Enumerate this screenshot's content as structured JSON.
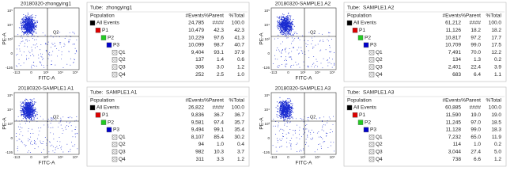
{
  "panels": [
    {
      "plot": {
        "title": "20180320-zhongying1",
        "x_label": "FITC-A",
        "y_label": "PE-A",
        "x_ticks": [
          "-113",
          "0",
          "10³",
          "10⁴",
          "10⁵"
        ],
        "y_ticks": [
          "10⁵",
          "10⁴",
          "10³",
          "0",
          "-126"
        ],
        "quadrant_label": "Q2"
      },
      "table": {
        "tube_label": "Tube:",
        "tube_name": "zhongying1",
        "header": [
          "Population",
          "#Events",
          "%Parent",
          "%Total"
        ],
        "rows": [
          [
            "All Events",
            "24,785",
            "####",
            "100.0"
          ],
          [
            "P1",
            "10,479",
            "42.3",
            "42.3"
          ],
          [
            "P2",
            "10,229",
            "97.6",
            "41.3"
          ],
          [
            "P3",
            "10,099",
            "98.7",
            "40.7"
          ],
          [
            "Q1",
            "9,404",
            "93.1",
            "37.9"
          ],
          [
            "Q2",
            "137",
            "1.4",
            "0.6"
          ],
          [
            "Q3",
            "306",
            "3.0",
            "1.2"
          ],
          [
            "Q4",
            "252",
            "2.5",
            "1.0"
          ]
        ]
      }
    },
    {
      "plot": {
        "title": "20180320-SAMPLE1 A2",
        "x_label": "FITC-A",
        "y_label": "PE-A",
        "x_ticks": [
          "-113",
          "0",
          "10³",
          "10⁴",
          "10⁵"
        ],
        "y_ticks": [
          "10⁵",
          "10⁴",
          "10³",
          "0",
          "-126"
        ],
        "quadrant_label": "Q2"
      },
      "table": {
        "tube_label": "Tube:",
        "tube_name": "SAMPLE1 A2",
        "header": [
          "Population",
          "#Events",
          "%Parent",
          "%Total"
        ],
        "rows": [
          [
            "All Events",
            "61,212",
            "####",
            "100.0"
          ],
          [
            "P1",
            "11,126",
            "18.2",
            "18.2"
          ],
          [
            "P2",
            "10,817",
            "97.2",
            "17.7"
          ],
          [
            "P3",
            "10,709",
            "99.0",
            "17.5"
          ],
          [
            "Q1",
            "7,491",
            "70.0",
            "12.2"
          ],
          [
            "Q2",
            "134",
            "1.3",
            "0.2"
          ],
          [
            "Q3",
            "2,401",
            "22.4",
            "3.9"
          ],
          [
            "Q4",
            "683",
            "6.4",
            "1.1"
          ]
        ]
      }
    },
    {
      "plot": {
        "title": "20180320-SAMPLE1 A1",
        "x_label": "FITC-A",
        "y_label": "PE-A",
        "x_ticks": [
          "-113",
          "0",
          "10³",
          "10⁴",
          "10⁵"
        ],
        "y_ticks": [
          "10⁵",
          "10⁴",
          "10³",
          "0",
          "-126"
        ],
        "quadrant_label": "Q2"
      },
      "table": {
        "tube_label": "Tube:",
        "tube_name": "SAMPLE1 A1",
        "header": [
          "Population",
          "#Events",
          "%Parent",
          "%Total"
        ],
        "rows": [
          [
            "All Events",
            "26,822",
            "####",
            "100.0"
          ],
          [
            "P1",
            "9,836",
            "36.7",
            "36.7"
          ],
          [
            "P2",
            "9,581",
            "97.4",
            "35.7"
          ],
          [
            "P3",
            "9,494",
            "99.1",
            "35.4"
          ],
          [
            "Q1",
            "8,107",
            "85.4",
            "30.2"
          ],
          [
            "Q2",
            "94",
            "1.0",
            "0.4"
          ],
          [
            "Q3",
            "982",
            "10.3",
            "3.7"
          ],
          [
            "Q4",
            "311",
            "3.3",
            "1.2"
          ]
        ]
      }
    },
    {
      "plot": {
        "title": "20180320-SAMPLE1 A3",
        "x_label": "FITC-A",
        "y_label": "PE-A",
        "x_ticks": [
          "-113",
          "0",
          "10³",
          "10⁴",
          "10⁵"
        ],
        "y_ticks": [
          "10⁵",
          "10⁴",
          "10³",
          "0",
          "-126"
        ],
        "quadrant_label": "Q2"
      },
      "table": {
        "tube_label": "Tube:",
        "tube_name": "SAMPLE1 A3",
        "header": [
          "Population",
          "#Events",
          "%Parent",
          "%Total"
        ],
        "rows": [
          [
            "All Events",
            "60,885",
            "####",
            "100.0"
          ],
          [
            "P1",
            "11,590",
            "19.0",
            "19.0"
          ],
          [
            "P2",
            "11,245",
            "97.0",
            "18.5"
          ],
          [
            "P3",
            "11,128",
            "99.0",
            "18.3"
          ],
          [
            "Q1",
            "7,232",
            "65.0",
            "11.9"
          ],
          [
            "Q2",
            "114",
            "1.0",
            "0.2"
          ],
          [
            "Q3",
            "3,044",
            "27.4",
            "5.0"
          ],
          [
            "Q4",
            "738",
            "6.6",
            "1.2"
          ]
        ]
      }
    }
  ]
}
